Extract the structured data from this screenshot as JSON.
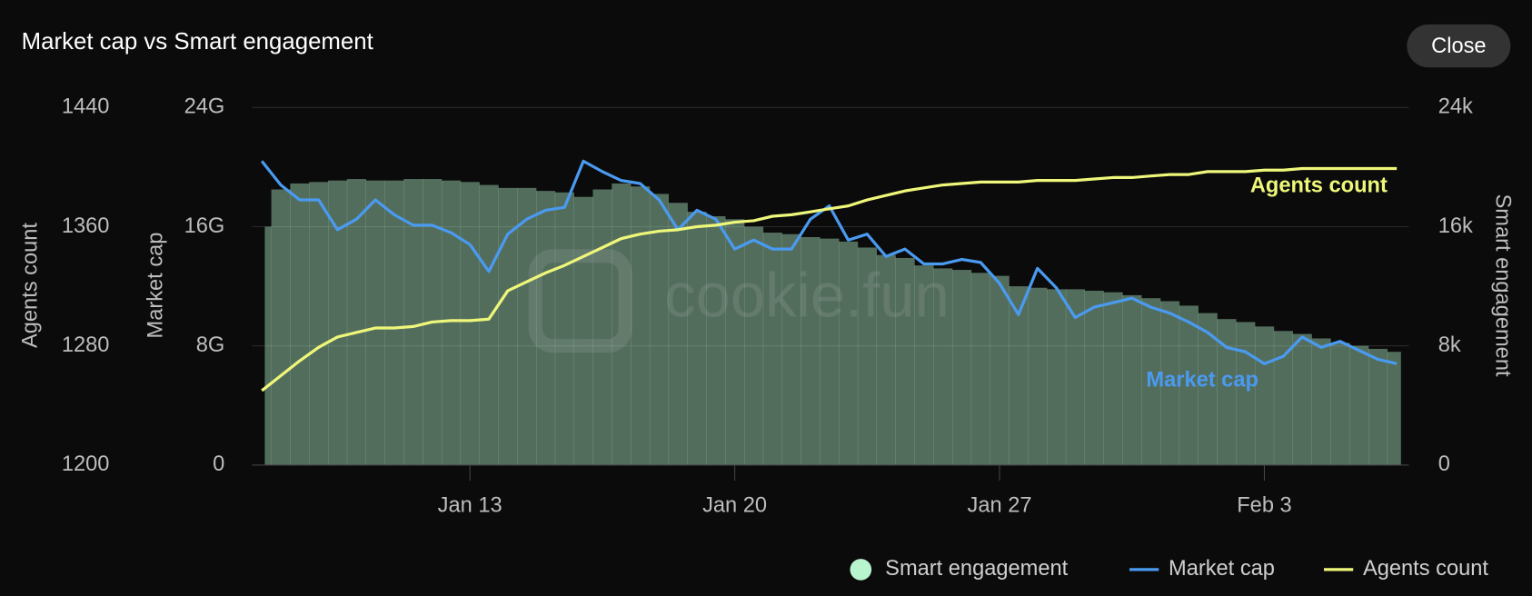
{
  "title": "Market cap vs Smart engagement",
  "close_button": "Close",
  "chart_data": {
    "type": "combo",
    "watermark": "cookie.fun",
    "categories": [
      null,
      null,
      null,
      null,
      null,
      null,
      null,
      null,
      null,
      null,
      null,
      "Jan 13",
      null,
      null,
      null,
      null,
      null,
      null,
      null,
      null,
      null,
      null,
      null,
      null,
      null,
      "Jan 20",
      null,
      null,
      null,
      null,
      null,
      null,
      null,
      null,
      null,
      null,
      null,
      null,
      null,
      "Jan 27",
      null,
      null,
      null,
      null,
      null,
      null,
      null,
      null,
      null,
      null,
      null,
      null,
      null,
      "Feb 3",
      null,
      null,
      null,
      null,
      null,
      null,
      null
    ],
    "ylabel": "Market cap",
    "ylim": [
      0,
      24
    ],
    "yticks": [
      0,
      {
        "value": 8,
        "label": "8G"
      },
      {
        "value": 16,
        "label": "16G"
      },
      {
        "value": 24,
        "label": "24G"
      }
    ],
    "y2label": "Smart engagement",
    "y2lim": [
      0,
      24
    ],
    "y2ticks": [
      0,
      {
        "value": 8,
        "label": "8k"
      },
      {
        "value": 16,
        "label": "16k"
      },
      {
        "value": 24,
        "label": "24k"
      }
    ],
    "y3label": "Agents count",
    "y3lim": [
      1200,
      1440
    ],
    "y3ticks": [
      1200,
      1280,
      1360,
      1440
    ],
    "grid": true,
    "series": [
      {
        "name": "Smart engagement",
        "type": "bar",
        "axis": "y2",
        "color": "#b8f5cf",
        "values": [
          16,
          18.5,
          18.9,
          19.0,
          19.1,
          19.2,
          19.1,
          19.1,
          19.2,
          19.2,
          19.1,
          19.0,
          18.8,
          18.6,
          18.6,
          18.4,
          18.3,
          18.0,
          18.5,
          18.9,
          18.7,
          18.2,
          17.6,
          17.0,
          16.7,
          16.5,
          16.0,
          15.6,
          15.5,
          15.3,
          15.2,
          15.0,
          14.6,
          14.1,
          13.9,
          13.4,
          13.2,
          13.1,
          12.9,
          12.7,
          12.0,
          11.9,
          11.8,
          11.8,
          11.7,
          11.6,
          11.4,
          11.2,
          11.0,
          10.7,
          10.2,
          9.8,
          9.6,
          9.3,
          9.0,
          8.8,
          8.5,
          8.2,
          8.0,
          7.8,
          7.6
        ]
      },
      {
        "name": "Market cap",
        "type": "line",
        "axis": "y",
        "color": "#4a9af0",
        "values": [
          20.4,
          18.8,
          17.8,
          17.8,
          15.8,
          16.5,
          17.8,
          16.8,
          16.1,
          16.1,
          15.6,
          14.8,
          13.0,
          15.5,
          16.5,
          17.1,
          17.3,
          20.4,
          19.7,
          19.1,
          18.9,
          17.8,
          15.8,
          17.1,
          16.5,
          14.5,
          15.1,
          14.5,
          14.5,
          16.5,
          17.4,
          15.1,
          15.5,
          14.0,
          14.5,
          13.5,
          13.5,
          13.8,
          13.6,
          12.2,
          10.1,
          13.2,
          11.9,
          9.9,
          10.6,
          10.9,
          11.2,
          10.6,
          10.2,
          9.6,
          8.9,
          7.9,
          7.6,
          6.8,
          7.3,
          8.6,
          7.9,
          8.3,
          7.7,
          7.1,
          6.8
        ]
      },
      {
        "name": "Agents count",
        "type": "line",
        "axis": "y3",
        "color": "#eef77a",
        "values": [
          1250,
          1260,
          1270,
          1279,
          1286,
          1289,
          1292,
          1292,
          1293,
          1296,
          1297,
          1297,
          1298,
          1317,
          1323,
          1329,
          1334,
          1340,
          1346,
          1352,
          1355,
          1357,
          1358,
          1360,
          1361,
          1363,
          1364,
          1367,
          1368,
          1370,
          1372,
          1374,
          1378,
          1381,
          1384,
          1386,
          1388,
          1389,
          1390,
          1390,
          1390,
          1391,
          1391,
          1391,
          1392,
          1393,
          1393,
          1394,
          1395,
          1395,
          1397,
          1397,
          1397,
          1398,
          1398,
          1399,
          1399,
          1399,
          1399,
          1399,
          1399
        ]
      }
    ]
  }
}
